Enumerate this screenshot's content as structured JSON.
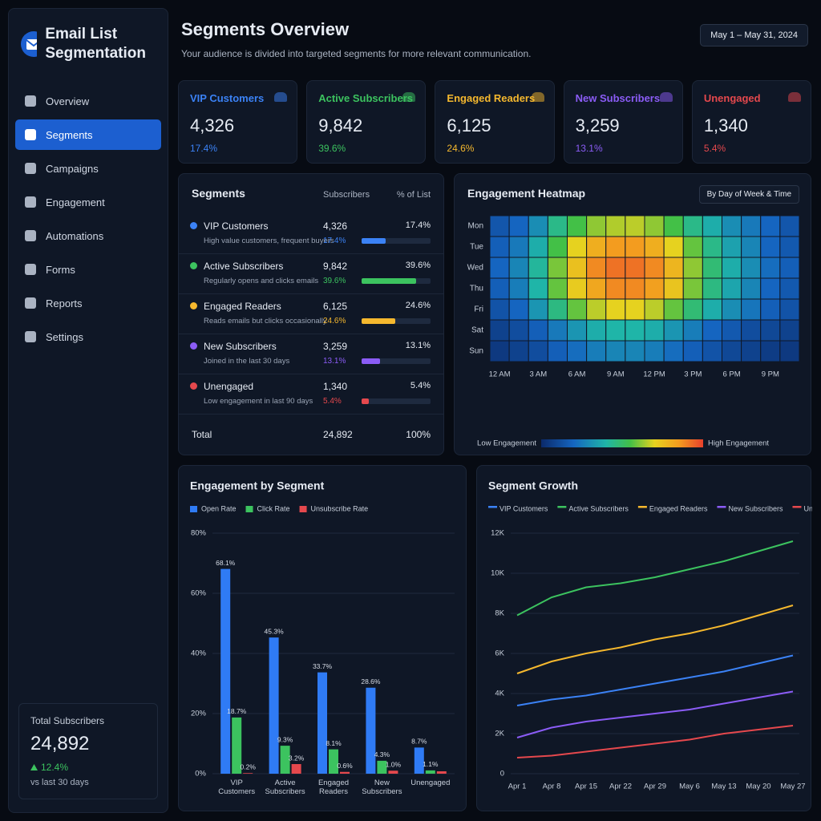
{
  "app": {
    "title": "Email List Segmentation"
  },
  "nav": {
    "items": [
      "Overview",
      "Segments",
      "Campaigns",
      "Engagement",
      "Automations",
      "Forms",
      "Reports",
      "Settings"
    ],
    "active": "Segments"
  },
  "summary": {
    "label": "Total Subscribers",
    "value": "24,892",
    "change": "12.4%",
    "period": "vs last 30 days"
  },
  "header": {
    "title": "Segments Overview",
    "subtitle": "Your audience is divided into targeted segments for more relevant communication.",
    "date_range": "May 1 – May 31, 2024"
  },
  "cards": [
    {
      "name": "VIP Customers",
      "value": "4,326",
      "share": "17.4%",
      "color": "#3b82f6"
    },
    {
      "name": "Active Subscribers",
      "value": "9,842",
      "share": "39.6%",
      "color": "#3cc35f"
    },
    {
      "name": "Engaged Readers",
      "value": "6,125",
      "share": "24.6%",
      "color": "#f5b82e"
    },
    {
      "name": "New Subscribers",
      "value": "3,259",
      "share": "13.1%",
      "color": "#8b5cf6"
    },
    {
      "name": "Unengaged",
      "value": "1,340",
      "share": "5.4%",
      "color": "#e5484d"
    }
  ],
  "segments_table": {
    "title": "Segments",
    "columns": [
      "Subscribers",
      "% of List"
    ],
    "rows": [
      {
        "name": "VIP Customers",
        "description": "High value customers, frequent buyers",
        "subscribers": "4,326",
        "percent": 17.4,
        "percent_label": "17.4%",
        "color": "#3b82f6"
      },
      {
        "name": "Active Subscribers",
        "description": "Regularly opens and clicks emails",
        "subscribers": "9,842",
        "percent": 39.6,
        "percent_label": "39.6%",
        "color": "#3cc35f"
      },
      {
        "name": "Engaged Readers",
        "description": "Reads emails but clicks occasionally",
        "subscribers": "6,125",
        "percent": 24.6,
        "percent_label": "24.6%",
        "color": "#f5b82e"
      },
      {
        "name": "New Subscribers",
        "description": "Joined in the last 30 days",
        "subscribers": "3,259",
        "percent": 13.1,
        "percent_label": "13.1%",
        "color": "#8b5cf6"
      },
      {
        "name": "Unengaged",
        "description": "Low engagement in last 90 days",
        "subscribers": "1,340",
        "percent": 5.4,
        "percent_label": "5.4%",
        "color": "#e5484d"
      }
    ],
    "total": {
      "label": "Total",
      "subscribers": "24,892",
      "percent": "100%"
    }
  },
  "heatmap": {
    "title": "Engagement Heatmap",
    "view": "By Day of Week & Time",
    "rows": [
      "Mon",
      "Tue",
      "Wed",
      "Thu",
      "Fri",
      "Sat",
      "Sun"
    ],
    "column_labels": [
      "12 AM",
      "3 AM",
      "6 AM",
      "9 AM",
      "12 PM",
      "3 PM",
      "6 PM",
      "9 PM"
    ],
    "values": [
      [
        15,
        20,
        30,
        45,
        55,
        62,
        65,
        66,
        62,
        55,
        45,
        38,
        30,
        25,
        20,
        15
      ],
      [
        18,
        25,
        38,
        55,
        70,
        80,
        85,
        85,
        80,
        70,
        58,
        45,
        35,
        28,
        20,
        16
      ],
      [
        20,
        28,
        42,
        60,
        75,
        88,
        92,
        92,
        88,
        78,
        62,
        48,
        38,
        30,
        22,
        18
      ],
      [
        18,
        26,
        40,
        58,
        72,
        82,
        88,
        88,
        84,
        74,
        60,
        46,
        36,
        28,
        20,
        16
      ],
      [
        14,
        20,
        32,
        46,
        58,
        66,
        70,
        70,
        66,
        58,
        48,
        38,
        30,
        24,
        18,
        14
      ],
      [
        8,
        12,
        18,
        25,
        32,
        38,
        40,
        40,
        38,
        32,
        26,
        20,
        16,
        12,
        10,
        8
      ],
      [
        5,
        8,
        12,
        18,
        22,
        26,
        28,
        28,
        26,
        22,
        18,
        14,
        10,
        8,
        6,
        5
      ]
    ],
    "low_label": "Low Engagement",
    "high_label": "High Engagement"
  },
  "chart_data": [
    {
      "type": "bar",
      "title": "Engagement by Segment",
      "categories": [
        "VIP Customers",
        "Active Subscribers",
        "Engaged Readers",
        "New Subscribers",
        "Unengaged"
      ],
      "series": [
        {
          "name": "Open Rate",
          "color": "#2f7bf5",
          "values": [
            68.1,
            45.3,
            33.7,
            28.6,
            8.7
          ],
          "value_labels": [
            "68.1%",
            "45.3%",
            "33.7%",
            "28.6%",
            "8.7%"
          ]
        },
        {
          "name": "Click Rate",
          "color": "#3cc35f",
          "values": [
            18.7,
            9.3,
            8.1,
            4.3,
            1.1
          ],
          "value_labels": [
            "18.7%",
            "9.3%",
            "8.1%",
            "4.3%",
            "1.1%"
          ]
        },
        {
          "name": "Unsubscribe Rate",
          "color": "#e5484d",
          "values": [
            0.2,
            3.2,
            0.6,
            1.0,
            0.8
          ],
          "value_labels": [
            "0.2%",
            "3.2%",
            "0.6%",
            "1.0%",
            null
          ]
        }
      ],
      "ylim": [
        0,
        80
      ],
      "yticks": [
        {
          "value": 0,
          "label": "0%"
        },
        {
          "value": 20,
          "label": "20%"
        },
        {
          "value": 40,
          "label": "40%"
        },
        {
          "value": 60,
          "label": "60%"
        },
        {
          "value": 80,
          "label": "80%"
        }
      ],
      "grid": true
    },
    {
      "type": "line",
      "title": "Segment Growth",
      "categories": [
        "Apr 1",
        "Apr 8",
        "Apr 15",
        "Apr 22",
        "Apr 29",
        "May 6",
        "May 13",
        "May 20",
        "May 27"
      ],
      "series": [
        {
          "name": "VIP Customers",
          "color": "#3b82f6",
          "values": [
            3400,
            3700,
            3900,
            4200,
            4500,
            4800,
            5100,
            5500,
            5900
          ]
        },
        {
          "name": "Active Subscribers",
          "color": "#3cc35f",
          "values": [
            7900,
            8800,
            9300,
            9500,
            9800,
            10200,
            10600,
            11100,
            11600
          ]
        },
        {
          "name": "Engaged Readers",
          "color": "#f5b82e",
          "values": [
            5000,
            5600,
            6000,
            6300,
            6700,
            7000,
            7400,
            7900,
            8400
          ]
        },
        {
          "name": "New Subscribers",
          "color": "#8b5cf6",
          "values": [
            1800,
            2300,
            2600,
            2800,
            3000,
            3200,
            3500,
            3800,
            4100
          ]
        },
        {
          "name": "Unengaged",
          "color": "#e5484d",
          "values": [
            800,
            900,
            1100,
            1300,
            1500,
            1700,
            2000,
            2200,
            2400
          ]
        }
      ],
      "ylim": [
        0,
        12000
      ],
      "yticks": [
        0,
        {
          "value": 2000,
          "label": "2K"
        },
        {
          "value": 4000,
          "label": "4K"
        },
        {
          "value": 6000,
          "label": "6K"
        },
        {
          "value": 8000,
          "label": "8K"
        },
        {
          "value": 10000,
          "label": "10K"
        },
        {
          "value": 12000,
          "label": "12K"
        }
      ],
      "grid": true
    }
  ]
}
